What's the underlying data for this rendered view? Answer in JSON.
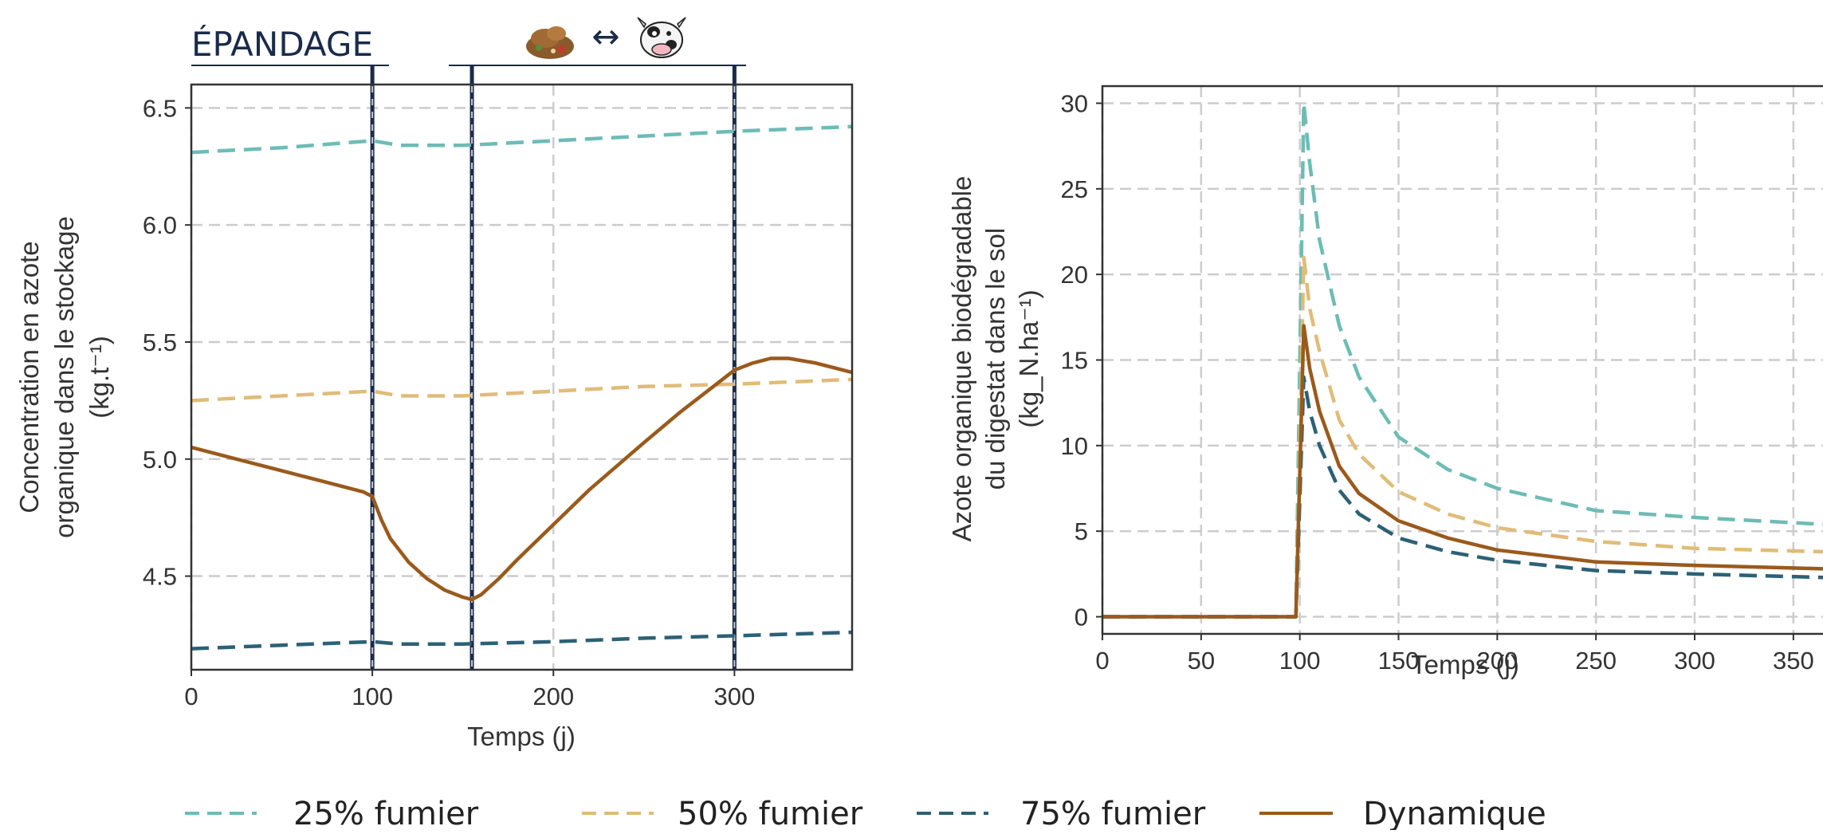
{
  "header": {
    "epandage_label": "ÉPANDAGE",
    "exchange_arrow": "↔",
    "left_icon": "manure-pile-icon",
    "right_icon": "cow-icon"
  },
  "colors": {
    "fumier25": "#6dbcb5",
    "fumier50": "#e0bc78",
    "fumier75": "#2c6176",
    "dynamique": "#9a5a1c",
    "vline": "#1a2b4a"
  },
  "legend": {
    "items": [
      {
        "label": "25% fumier",
        "style": "dashed",
        "color": "#6dbcb5"
      },
      {
        "label": "50% fumier",
        "style": "dashed",
        "color": "#e0bc78"
      },
      {
        "label": "75% fumier",
        "style": "dashed",
        "color": "#2c6176"
      },
      {
        "label": "Dynamique",
        "style": "solid",
        "color": "#9a5a1c"
      }
    ]
  },
  "chart_data": [
    {
      "type": "line",
      "xlabel": "Temps (j)",
      "ylabel_lines": [
        "Concentration en azote",
        "organique dans le stockage",
        "(kg.t⁻¹)"
      ],
      "xlim": [
        0,
        365
      ],
      "ylim": [
        4.1,
        6.6
      ],
      "xticks": [
        0,
        100,
        200,
        300
      ],
      "yticks": [
        4.5,
        5.0,
        5.5,
        6.0,
        6.5
      ],
      "grid": true,
      "vlines": [
        100,
        155,
        300
      ],
      "series": [
        {
          "name": "25% fumier",
          "style": "dashed",
          "color": "#6dbcb5",
          "x": [
            0,
            50,
            100,
            115,
            150,
            200,
            250,
            300,
            365
          ],
          "y": [
            6.31,
            6.33,
            6.36,
            6.34,
            6.34,
            6.36,
            6.38,
            6.4,
            6.42
          ]
        },
        {
          "name": "50% fumier",
          "style": "dashed",
          "color": "#e0bc78",
          "x": [
            0,
            50,
            100,
            115,
            150,
            200,
            250,
            300,
            365
          ],
          "y": [
            5.25,
            5.27,
            5.29,
            5.27,
            5.27,
            5.29,
            5.31,
            5.32,
            5.34
          ]
        },
        {
          "name": "75% fumier",
          "style": "dashed",
          "color": "#2c6176",
          "x": [
            0,
            50,
            100,
            115,
            150,
            200,
            250,
            300,
            365
          ],
          "y": [
            4.19,
            4.205,
            4.22,
            4.21,
            4.21,
            4.22,
            4.235,
            4.245,
            4.26
          ]
        },
        {
          "name": "Dynamique",
          "style": "solid",
          "color": "#9a5a1c",
          "x": [
            0,
            25,
            50,
            75,
            95,
            100,
            105,
            110,
            120,
            130,
            140,
            150,
            155,
            160,
            170,
            180,
            200,
            220,
            250,
            270,
            290,
            300,
            310,
            320,
            330,
            345,
            365
          ],
          "y": [
            5.05,
            5.0,
            4.95,
            4.9,
            4.86,
            4.84,
            4.74,
            4.66,
            4.56,
            4.49,
            4.44,
            4.41,
            4.4,
            4.42,
            4.49,
            4.57,
            4.72,
            4.87,
            5.07,
            5.2,
            5.32,
            5.38,
            5.41,
            5.43,
            5.43,
            5.41,
            5.37
          ]
        }
      ]
    },
    {
      "type": "line",
      "xlabel": "Temps (j)",
      "ylabel_lines": [
        "Azote organique biodégradable",
        "du digestat dans le sol",
        "(kg_N.ha⁻¹)"
      ],
      "xlim": [
        0,
        365
      ],
      "ylim": [
        -1,
        31
      ],
      "xticks": [
        0,
        50,
        100,
        150,
        200,
        250,
        300,
        350
      ],
      "yticks": [
        0,
        5,
        10,
        15,
        20,
        25,
        30
      ],
      "grid": true,
      "series": [
        {
          "name": "25% fumier",
          "style": "dashed",
          "color": "#6dbcb5",
          "x": [
            0,
            98,
            100,
            102,
            105,
            110,
            120,
            130,
            150,
            175,
            200,
            250,
            300,
            365
          ],
          "y": [
            0,
            0,
            15,
            30,
            26.5,
            22,
            17,
            14,
            10.5,
            8.6,
            7.5,
            6.2,
            5.8,
            5.4
          ]
        },
        {
          "name": "50% fumier",
          "style": "dashed",
          "color": "#e0bc78",
          "x": [
            0,
            98,
            100,
            102,
            105,
            110,
            120,
            130,
            150,
            175,
            200,
            250,
            300,
            365
          ],
          "y": [
            0,
            0,
            10,
            21,
            18,
            15.5,
            11.5,
            9.5,
            7.3,
            6.0,
            5.2,
            4.4,
            4.0,
            3.8
          ]
        },
        {
          "name": "75% fumier",
          "style": "dashed",
          "color": "#2c6176",
          "x": [
            0,
            98,
            100,
            102,
            105,
            110,
            120,
            130,
            150,
            175,
            200,
            250,
            300,
            365
          ],
          "y": [
            0,
            0,
            7,
            14,
            12,
            10,
            7.4,
            6.0,
            4.6,
            3.8,
            3.3,
            2.7,
            2.5,
            2.3
          ]
        },
        {
          "name": "Dynamique",
          "style": "solid",
          "color": "#9a5a1c",
          "x": [
            0,
            98,
            100,
            102,
            105,
            110,
            120,
            130,
            150,
            175,
            200,
            250,
            300,
            365
          ],
          "y": [
            0,
            0,
            8.5,
            17,
            14.5,
            12,
            8.8,
            7.2,
            5.6,
            4.6,
            3.9,
            3.2,
            3.0,
            2.8
          ]
        }
      ]
    }
  ]
}
